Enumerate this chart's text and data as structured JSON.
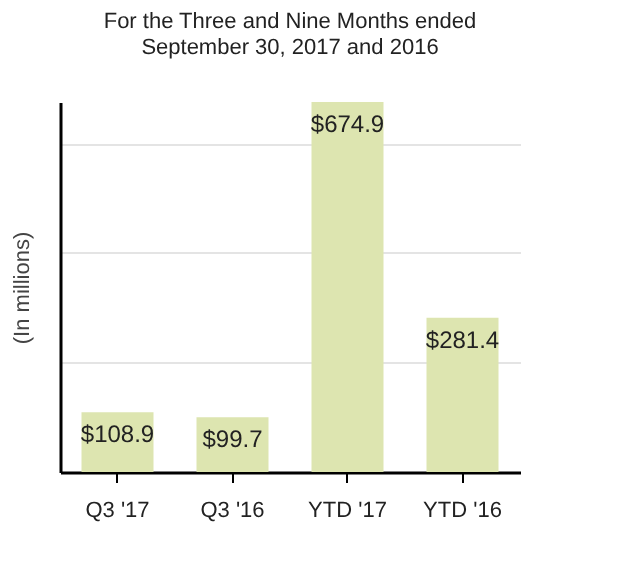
{
  "chart_data": {
    "type": "bar",
    "title": "For the Three and Nine Months ended\nSeptember 30, 2017 and 2016",
    "ylabel": "(In millions)",
    "categories": [
      "Q3 '17",
      "Q3 '16",
      "YTD '17",
      "YTD '16"
    ],
    "values": [
      108.9,
      99.7,
      674.9,
      281.4
    ],
    "color": "#dde5b0",
    "value_labels": [
      "$108.9",
      "$99.7",
      "$674.9",
      "$281.4"
    ],
    "ylim": [
      0,
      675
    ],
    "yticks": [
      {
        "value": 0,
        "label": null
      },
      {
        "value": 200,
        "label": null
      },
      {
        "value": 400,
        "label": null
      },
      {
        "value": 600,
        "label": null
      }
    ],
    "grid": "y"
  }
}
